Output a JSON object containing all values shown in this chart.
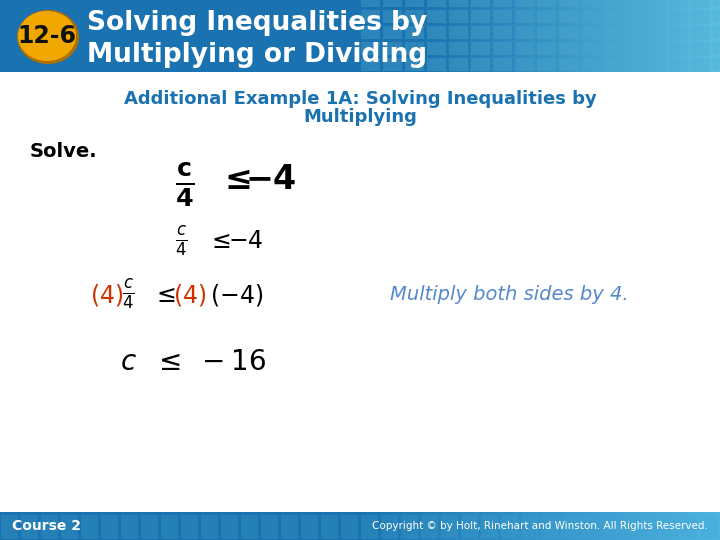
{
  "header_bg_color": "#1a72b0",
  "header_text_color": "#ffffff",
  "header_title_line1": "Solving Inequalities by",
  "header_title_line2": "Multiplying or Dividing",
  "badge_text": "12-6",
  "badge_bg": "#f0a800",
  "badge_border": "#b07000",
  "subtitle_color": "#1a72b0",
  "subtitle_line1": "Additional Example 1A: Solving Inequalities by",
  "subtitle_line2": "Multiplying",
  "solve_label": "Solve.",
  "solve_color": "#000000",
  "footer_bg": "#1a72b0",
  "footer_text_left": "Course 2",
  "footer_text_right": "Copyright © by Holt, Rinehart and Winston. All Rights Reserved.",
  "footer_text_color": "#ffffff",
  "orange_color": "#cc3300",
  "blue_annotation_color": "#5588cc",
  "body_bg": "#ffffff",
  "header_grid_color_dark": "#1a72b0",
  "header_grid_color_light": "#55bbdd"
}
